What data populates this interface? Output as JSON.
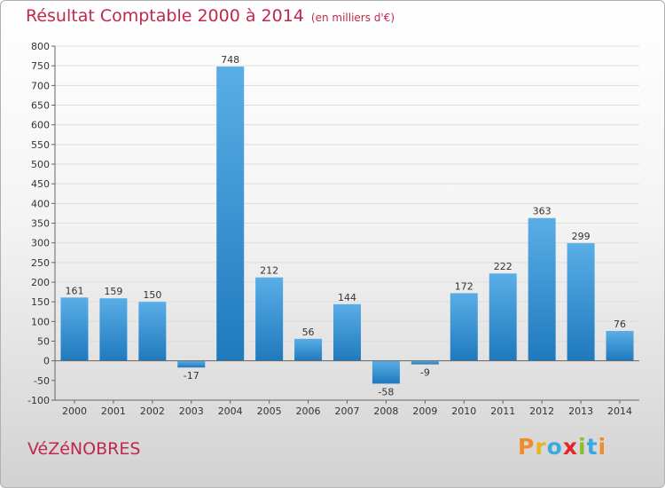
{
  "title": "Résultat Comptable 2000 à 2014",
  "subtitle": "(en milliers d'€)",
  "town": "VéZéNOBRES",
  "logo": {
    "text": "Proxiti",
    "colors": [
      "#f28c28",
      "#e8b321",
      "#3ca8e0",
      "#e2262a",
      "#8dbd2d",
      "#3ca8e0",
      "#f28c28"
    ]
  },
  "colors": {
    "bar_top": "#5aaee6",
    "bar_bottom": "#1f79bd",
    "title": "#c0284c",
    "grid": "#dddddd"
  },
  "chart_data": {
    "type": "bar",
    "title": "Résultat Comptable 2000 à 2014",
    "subtitle": "(en milliers d'€)",
    "categories": [
      "2000",
      "2001",
      "2002",
      "2003",
      "2004",
      "2005",
      "2006",
      "2007",
      "2008",
      "2009",
      "2010",
      "2011",
      "2012",
      "2013",
      "2014"
    ],
    "values": [
      161,
      159,
      150,
      -17,
      748,
      212,
      56,
      144,
      -58,
      -9,
      172,
      222,
      363,
      299,
      76
    ],
    "data_labels": [
      "161",
      "159",
      "150",
      "-17",
      "748",
      "212",
      "56",
      "144",
      "-58",
      "-9",
      "172",
      "222",
      "363",
      "299",
      "76"
    ],
    "ylim": [
      -100,
      800
    ],
    "yticks": [
      -100,
      -50,
      0,
      50,
      100,
      150,
      200,
      250,
      300,
      350,
      400,
      450,
      500,
      550,
      600,
      650,
      700,
      750,
      800
    ],
    "ytick_labels": [
      "-100",
      "-50",
      "0",
      "50",
      "100",
      "150",
      "200",
      "250",
      "300",
      "350",
      "400",
      "450",
      "500",
      "550",
      "600",
      "650",
      "700",
      "750",
      "800"
    ],
    "xlabel": "",
    "ylabel": "",
    "grid": true,
    "legend": "none"
  }
}
